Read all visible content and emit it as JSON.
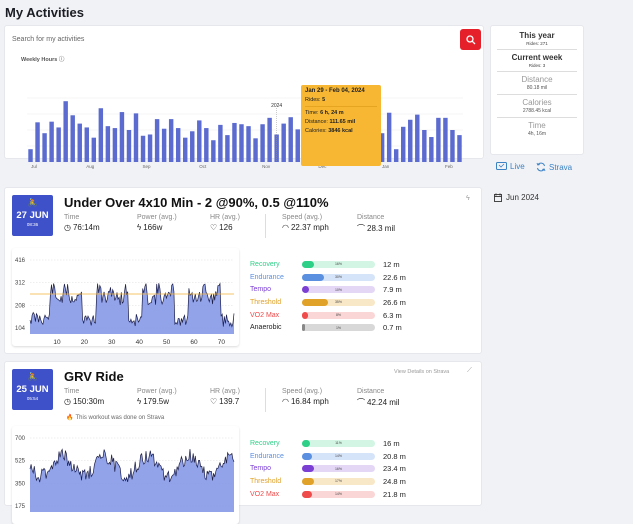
{
  "page_title": "My Activities",
  "search": {
    "placeholder": "Search for my activities"
  },
  "weekly": {
    "label": "Weekly Hours",
    "year_marker": "2024",
    "x_labels": [
      "Jul",
      "Aug",
      "Sep",
      "Oct",
      "Nov",
      "Dec",
      "Jan",
      "Feb",
      "May",
      "Jun"
    ],
    "bars": [
      0.2,
      0.62,
      0.45,
      0.63,
      0.54,
      0.95,
      0.73,
      0.6,
      0.54,
      0.38,
      0.84,
      0.56,
      0.53,
      0.78,
      0.5,
      0.76,
      0.41,
      0.43,
      0.67,
      0.52,
      0.67,
      0.53,
      0.38,
      0.48,
      0.65,
      0.53,
      0.34,
      0.58,
      0.42,
      0.61,
      0.59,
      0.56,
      0.37,
      0.59,
      0.69,
      0.43,
      0.6,
      0.7,
      0.51,
      0.29,
      0.76,
      0.55,
      0.47,
      0.36,
      0.62,
      0.68,
      0.39,
      0.89,
      0.98,
      0.3,
      0.45,
      0.77,
      0.2,
      0.55,
      0.66,
      0.74,
      0.5,
      0.39,
      0.69,
      0.69,
      0.5,
      0.42
    ],
    "bar_color": "#5b6bcf",
    "tooltip": {
      "range": "Jan 29 - Feb 04, 2024",
      "rides_label": "Rides:",
      "rides": "5",
      "time_label": "Time:",
      "time": "6 h, 24 m",
      "distance_label": "Distance:",
      "distance": "111.65 mil",
      "calories_label": "Calories:",
      "calories": "3846 kcal"
    }
  },
  "stats": {
    "year_label": "This year",
    "year_rides": "Rides: 271",
    "week_label": "Current week",
    "week_rides": "Rides: 3",
    "distance_label": "Distance",
    "distance_value": "80.18 mil",
    "calories_label": "Calories",
    "calories_value": "2788.45 kcal",
    "time_label": "Time",
    "time_value": "4h, 16m"
  },
  "links": {
    "live": "Live",
    "strava": "Strava",
    "month": "Jun 2024"
  },
  "activities": [
    {
      "day": "27 JUN",
      "clock": "08:36",
      "title": "Under Over 4x10 Min - 2 @90%, 0.5 @110%",
      "time_label": "Time",
      "time": "76:14m",
      "power_label": "Power (avg.)",
      "power": "166w",
      "hr_label": "HR (avg.)",
      "hr": "126",
      "speed_label": "Speed (avg.)",
      "speed": "22.37 mph",
      "distance_label": "Distance",
      "distance": "28.3 mil",
      "y_ticks": [
        "416",
        "312",
        "208",
        "104"
      ],
      "x_ticks": [
        "10",
        "20",
        "30",
        "40",
        "50",
        "60",
        "70"
      ],
      "zones": [
        {
          "name": "Recovery",
          "pct": "16%",
          "time": "12 m",
          "color": "#2ecf87",
          "bg": "#d2f5e4",
          "frac": 0.16
        },
        {
          "name": "Endurance",
          "pct": "30%",
          "time": "22.6 m",
          "color": "#5b8fe0",
          "bg": "#d6e4f9",
          "frac": 0.3
        },
        {
          "name": "Tempo",
          "pct": "10%",
          "time": "7.9 m",
          "color": "#7b3fd4",
          "bg": "#e4d7f6",
          "frac": 0.1
        },
        {
          "name": "Threshold",
          "pct": "35%",
          "time": "26.6 m",
          "color": "#e0a228",
          "bg": "#f9e8c8",
          "frac": 0.35
        },
        {
          "name": "VO2 Max",
          "pct": "8%",
          "time": "6.3 m",
          "color": "#ef4b4b",
          "bg": "#fbd6d6",
          "frac": 0.08
        },
        {
          "name": "Anaerobic",
          "pct": "1%",
          "time": "0.7 m",
          "color": "#888",
          "bg": "#d8d8d8",
          "frac": 0.01
        }
      ]
    },
    {
      "day": "25 JUN",
      "clock": "05:54",
      "title": "GRV Ride",
      "time_label": "Time",
      "time": "150:30m",
      "power_label": "Power (avg.)",
      "power": "179.5w",
      "hr_label": "HR (avg.)",
      "hr": "139.7",
      "speed_label": "Speed (avg.)",
      "speed": "16.84 mph",
      "distance_label": "Distance",
      "distance": "42.24 mil",
      "strava_note": "This workout was done on Strava",
      "view_details": "View Details on Strava",
      "y_ticks": [
        "700",
        "525",
        "350",
        "175"
      ],
      "zones": [
        {
          "name": "Recovery",
          "pct": "11%",
          "time": "16 m",
          "color": "#2ecf87",
          "bg": "#d2f5e4",
          "frac": 0.11
        },
        {
          "name": "Endurance",
          "pct": "14%",
          "time": "20.8 m",
          "color": "#5b8fe0",
          "bg": "#d6e4f9",
          "frac": 0.14
        },
        {
          "name": "Tempo",
          "pct": "16%",
          "time": "23.4 m",
          "color": "#7b3fd4",
          "bg": "#e4d7f6",
          "frac": 0.16
        },
        {
          "name": "Threshold",
          "pct": "17%",
          "time": "24.8 m",
          "color": "#e0a228",
          "bg": "#f9e8c8",
          "frac": 0.17
        },
        {
          "name": "VO2 Max",
          "pct": "14%",
          "time": "21.8 m",
          "color": "#ef4b4b",
          "bg": "#fbd6d6",
          "frac": 0.14
        }
      ]
    }
  ],
  "colors": {
    "accent": "#3f51c8",
    "danger": "#e5202a",
    "tooltip": "#f7b733"
  }
}
